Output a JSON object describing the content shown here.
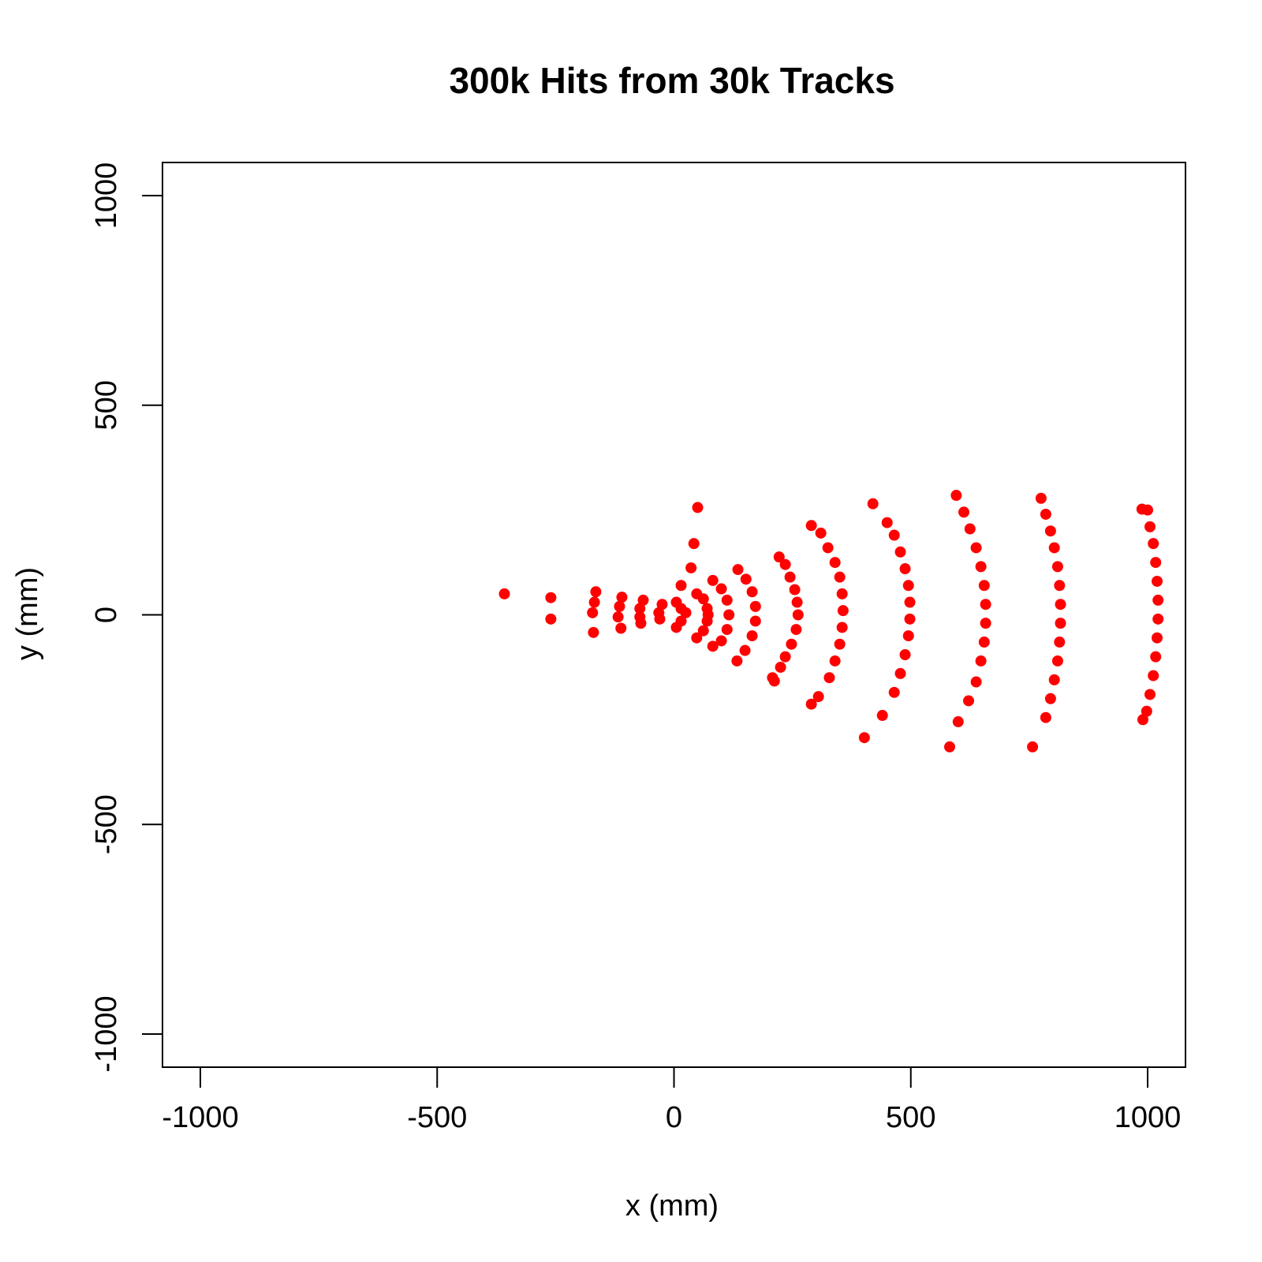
{
  "chart_data": {
    "type": "scatter",
    "title": "300k Hits from 30k Tracks",
    "xlabel": "x (mm)",
    "ylabel": "y (mm)",
    "xlim": [
      -1080,
      1080
    ],
    "ylim": [
      -1080,
      1080
    ],
    "xticks": [
      -1000,
      -500,
      0,
      500,
      1000
    ],
    "yticks": [
      -1000,
      -500,
      0,
      500,
      1000
    ],
    "grid": false,
    "legend": "none",
    "point_color": "#ff0000",
    "series": [
      {
        "points": [
          {
            "x": -358,
            "y": 50
          },
          {
            "x": -260,
            "y": 41
          },
          {
            "x": -260,
            "y": -10
          },
          {
            "x": -165,
            "y": 55
          },
          {
            "x": -168,
            "y": 30
          },
          {
            "x": -172,
            "y": 5
          },
          {
            "x": -170,
            "y": -42
          },
          {
            "x": -110,
            "y": 42
          },
          {
            "x": -115,
            "y": 20
          },
          {
            "x": -118,
            "y": -5
          },
          {
            "x": -112,
            "y": -32
          },
          {
            "x": -65,
            "y": 35
          },
          {
            "x": -72,
            "y": 15
          },
          {
            "x": -72,
            "y": -5
          },
          {
            "x": -70,
            "y": -20
          },
          {
            "x": -25,
            "y": 25
          },
          {
            "x": -32,
            "y": 5
          },
          {
            "x": -30,
            "y": -10
          },
          {
            "x": 5,
            "y": 30
          },
          {
            "x": 15,
            "y": 15
          },
          {
            "x": 25,
            "y": 5
          },
          {
            "x": 15,
            "y": -15
          },
          {
            "x": 5,
            "y": -30
          },
          {
            "x": 50,
            "y": 256
          },
          {
            "x": 42,
            "y": 170
          },
          {
            "x": 36,
            "y": 112
          },
          {
            "x": 15,
            "y": 70
          },
          {
            "x": 48,
            "y": 50
          },
          {
            "x": 62,
            "y": 38
          },
          {
            "x": 70,
            "y": 15
          },
          {
            "x": 72,
            "y": 0
          },
          {
            "x": 70,
            "y": -15
          },
          {
            "x": 62,
            "y": -38
          },
          {
            "x": 48,
            "y": -55
          },
          {
            "x": 82,
            "y": 82
          },
          {
            "x": 100,
            "y": 62
          },
          {
            "x": 112,
            "y": 35
          },
          {
            "x": 116,
            "y": 0
          },
          {
            "x": 112,
            "y": -35
          },
          {
            "x": 100,
            "y": -62
          },
          {
            "x": 82,
            "y": -75
          },
          {
            "x": 135,
            "y": 108
          },
          {
            "x": 152,
            "y": 85
          },
          {
            "x": 165,
            "y": 55
          },
          {
            "x": 172,
            "y": 20
          },
          {
            "x": 172,
            "y": -15
          },
          {
            "x": 165,
            "y": -50
          },
          {
            "x": 150,
            "y": -85
          },
          {
            "x": 133,
            "y": -110
          },
          {
            "x": 222,
            "y": 138
          },
          {
            "x": 235,
            "y": 120
          },
          {
            "x": 245,
            "y": 90
          },
          {
            "x": 255,
            "y": 60
          },
          {
            "x": 260,
            "y": 30
          },
          {
            "x": 262,
            "y": 0
          },
          {
            "x": 258,
            "y": -35
          },
          {
            "x": 248,
            "y": -70
          },
          {
            "x": 235,
            "y": -100
          },
          {
            "x": 225,
            "y": -125
          },
          {
            "x": 208,
            "y": -150
          },
          {
            "x": 212,
            "y": -158
          },
          {
            "x": 290,
            "y": 213
          },
          {
            "x": 310,
            "y": 195
          },
          {
            "x": 325,
            "y": 160
          },
          {
            "x": 340,
            "y": 125
          },
          {
            "x": 350,
            "y": 90
          },
          {
            "x": 355,
            "y": 50
          },
          {
            "x": 357,
            "y": 10
          },
          {
            "x": 355,
            "y": -30
          },
          {
            "x": 350,
            "y": -70
          },
          {
            "x": 340,
            "y": -110
          },
          {
            "x": 328,
            "y": -150
          },
          {
            "x": 305,
            "y": -195
          },
          {
            "x": 290,
            "y": -213
          },
          {
            "x": 420,
            "y": 265
          },
          {
            "x": 450,
            "y": 220
          },
          {
            "x": 465,
            "y": 190
          },
          {
            "x": 478,
            "y": 150
          },
          {
            "x": 488,
            "y": 110
          },
          {
            "x": 495,
            "y": 70
          },
          {
            "x": 498,
            "y": 30
          },
          {
            "x": 498,
            "y": -10
          },
          {
            "x": 495,
            "y": -50
          },
          {
            "x": 488,
            "y": -95
          },
          {
            "x": 478,
            "y": -140
          },
          {
            "x": 465,
            "y": -185
          },
          {
            "x": 440,
            "y": -240
          },
          {
            "x": 402,
            "y": -293
          },
          {
            "x": 596,
            "y": 285
          },
          {
            "x": 612,
            "y": 245
          },
          {
            "x": 625,
            "y": 205
          },
          {
            "x": 638,
            "y": 160
          },
          {
            "x": 648,
            "y": 115
          },
          {
            "x": 655,
            "y": 70
          },
          {
            "x": 658,
            "y": 25
          },
          {
            "x": 658,
            "y": -20
          },
          {
            "x": 655,
            "y": -65
          },
          {
            "x": 648,
            "y": -110
          },
          {
            "x": 638,
            "y": -160
          },
          {
            "x": 622,
            "y": -205
          },
          {
            "x": 600,
            "y": -255
          },
          {
            "x": 582,
            "y": -315
          },
          {
            "x": 775,
            "y": 278
          },
          {
            "x": 785,
            "y": 240
          },
          {
            "x": 795,
            "y": 200
          },
          {
            "x": 803,
            "y": 160
          },
          {
            "x": 810,
            "y": 115
          },
          {
            "x": 814,
            "y": 70
          },
          {
            "x": 816,
            "y": 25
          },
          {
            "x": 816,
            "y": -20
          },
          {
            "x": 814,
            "y": -65
          },
          {
            "x": 810,
            "y": -110
          },
          {
            "x": 803,
            "y": -155
          },
          {
            "x": 795,
            "y": -200
          },
          {
            "x": 785,
            "y": -245
          },
          {
            "x": 757,
            "y": -315
          },
          {
            "x": 988,
            "y": 252
          },
          {
            "x": 1000,
            "y": 250
          },
          {
            "x": 1005,
            "y": 210
          },
          {
            "x": 1012,
            "y": 170
          },
          {
            "x": 1017,
            "y": 125
          },
          {
            "x": 1020,
            "y": 80
          },
          {
            "x": 1022,
            "y": 35
          },
          {
            "x": 1022,
            "y": -10
          },
          {
            "x": 1020,
            "y": -55
          },
          {
            "x": 1017,
            "y": -100
          },
          {
            "x": 1012,
            "y": -145
          },
          {
            "x": 1005,
            "y": -190
          },
          {
            "x": 998,
            "y": -230
          },
          {
            "x": 990,
            "y": -250
          }
        ]
      }
    ]
  }
}
